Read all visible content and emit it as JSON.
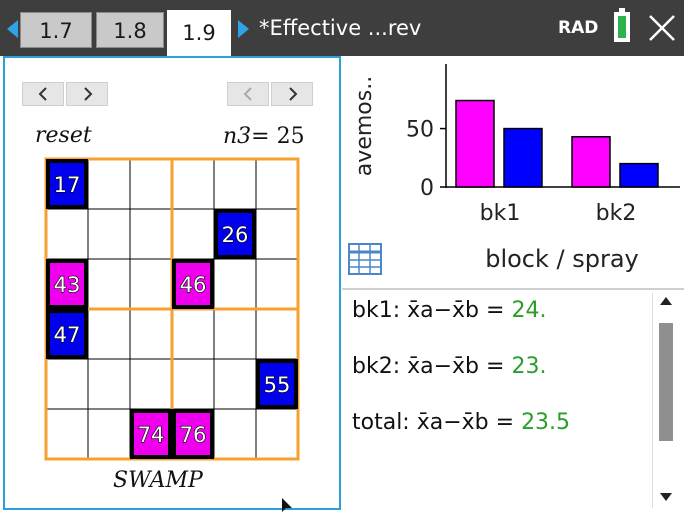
{
  "tabs": [
    {
      "label": "1.7",
      "active": false
    },
    {
      "label": "1.8",
      "active": false
    },
    {
      "label": "1.9",
      "active": true
    }
  ],
  "document_title": "*Effective ...rev",
  "angle_mode": "RAD",
  "left_panel": {
    "reset_label": "reset",
    "n3_var": "n3",
    "n3_eq": "= ",
    "n3_value": "25",
    "swamp_label": "SWAMP",
    "grid": {
      "rows": 6,
      "cols": 6,
      "cells": [
        {
          "number": "17",
          "row": 0,
          "col": 0,
          "color": "#0000ee"
        },
        {
          "number": "26",
          "row": 1,
          "col": 4,
          "color": "#0000ee"
        },
        {
          "number": "43",
          "row": 2,
          "col": 0,
          "color": "#ee00ee"
        },
        {
          "number": "46",
          "row": 2,
          "col": 3,
          "color": "#ee00ee"
        },
        {
          "number": "47",
          "row": 3,
          "col": 0,
          "color": "#0000ee"
        },
        {
          "number": "55",
          "row": 4,
          "col": 5,
          "color": "#0000ee"
        },
        {
          "number": "74",
          "row": 5,
          "col": 2,
          "color": "#ee00ee"
        },
        {
          "number": "76",
          "row": 5,
          "col": 3,
          "color": "#ee00ee"
        }
      ]
    }
  },
  "chart_data": {
    "type": "bar",
    "categories": [
      "bk1",
      "bk2"
    ],
    "series": [
      {
        "color": "#ff00ff",
        "values": [
          74,
          43
        ]
      },
      {
        "color": "#0000ff",
        "values": [
          50,
          20
        ]
      }
    ],
    "ylabel": "avemos..",
    "xlabel": "block / spray",
    "ylim": [
      0,
      100
    ],
    "y_ticks": [
      "50",
      "0"
    ],
    "grid": false
  },
  "calculator": {
    "lines": [
      {
        "label": "bk1: x̄a−x̄b = ",
        "value": "24."
      },
      {
        "label": "bk2: x̄a−x̄b = ",
        "value": "23."
      },
      {
        "label": "total: x̄a−x̄b = ",
        "value": "23.5"
      }
    ]
  }
}
